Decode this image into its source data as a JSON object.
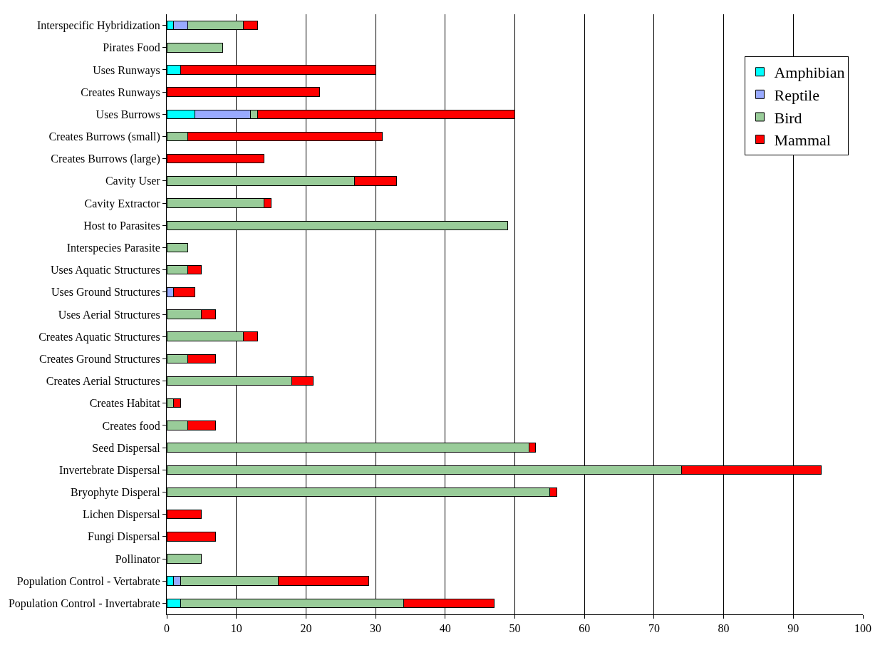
{
  "chart_data": {
    "type": "bar",
    "orientation": "horizontal",
    "stacked": true,
    "categories": [
      "Interspecific Hybridization",
      "Pirates Food",
      "Uses Runways",
      "Creates Runways",
      "Uses Burrows",
      "Creates Burrows (small)",
      "Creates Burrows (large)",
      "Cavity User",
      "Cavity Extractor",
      "Host to Parasites",
      "Interspecies Parasite",
      "Uses Aquatic Structures",
      "Uses Ground Structures",
      "Uses Aerial Structures",
      "Creates Aquatic Structures",
      "Creates Ground Structures",
      "Creates Aerial Structures",
      "Creates Habitat",
      "Creates food",
      "Seed Dispersal",
      "Invertebrate Dispersal",
      "Bryophyte Disperal",
      "Lichen Dispersal",
      "Fungi Dispersal",
      "Pollinator",
      "Population Control - Vertabrate",
      "Population Control - Invertabrate"
    ],
    "series": [
      {
        "name": "Amphibian",
        "color": "#00ffff",
        "values": [
          1,
          null,
          2,
          null,
          4,
          null,
          null,
          null,
          null,
          null,
          null,
          null,
          null,
          null,
          null,
          null,
          null,
          null,
          null,
          null,
          null,
          null,
          null,
          null,
          null,
          1,
          2
        ]
      },
      {
        "name": "Reptile",
        "color": "#99aaff",
        "values": [
          2,
          null,
          null,
          null,
          8,
          null,
          null,
          null,
          null,
          null,
          null,
          null,
          1,
          null,
          null,
          null,
          null,
          null,
          null,
          null,
          null,
          null,
          null,
          null,
          null,
          1,
          null
        ]
      },
      {
        "name": "Bird",
        "color": "#99cc99",
        "values": [
          8,
          8,
          null,
          null,
          1,
          3,
          null,
          27,
          14,
          49,
          3,
          3,
          null,
          5,
          11,
          3,
          18,
          1,
          3,
          52,
          74,
          55,
          null,
          null,
          5,
          14,
          32
        ]
      },
      {
        "name": "Mammal",
        "color": "#ff0000",
        "values": [
          2,
          null,
          28,
          22,
          37,
          28,
          14,
          6,
          1,
          null,
          null,
          2,
          3,
          2,
          2,
          4,
          3,
          1,
          4,
          1,
          20,
          1,
          5,
          7,
          null,
          13,
          13
        ]
      }
    ],
    "xlim": [
      0,
      100
    ],
    "xticks": [
      0,
      10,
      20,
      30,
      40,
      50,
      60,
      70,
      80,
      90,
      100
    ],
    "grid": "x",
    "legend": "top right"
  }
}
